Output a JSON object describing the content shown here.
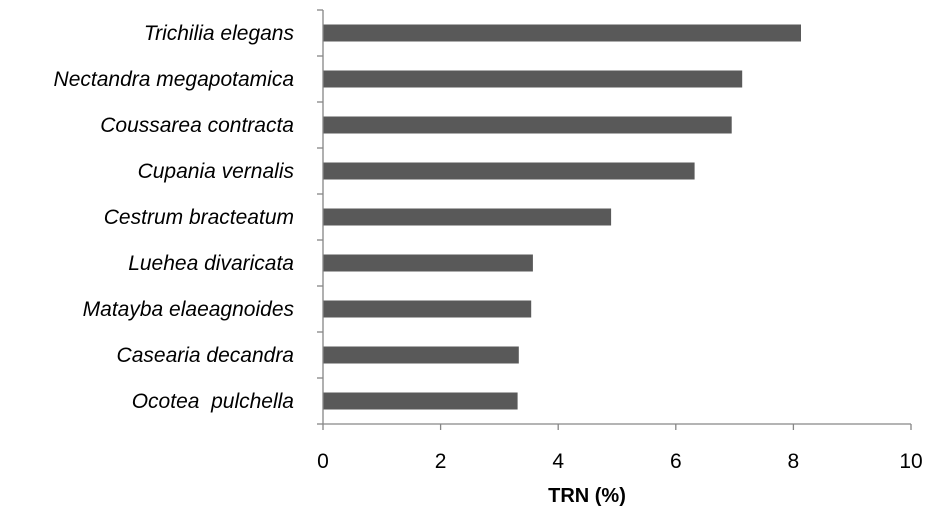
{
  "chart_data": {
    "type": "bar",
    "orientation": "horizontal",
    "categories": [
      "Trichilia elegans",
      "Nectandra megapotamica",
      "Coussarea contracta",
      "Cupania vernalis",
      "Cestrum bracteatum",
      "Luehea divaricata",
      "Matayba elaeagnoides",
      "Casearia decandra",
      "Ocotea  pulchella"
    ],
    "values": [
      8.13,
      7.13,
      6.95,
      6.32,
      4.9,
      3.57,
      3.54,
      3.33,
      3.31
    ],
    "xlabel": "TRN (%)",
    "ylabel": "",
    "xlim": [
      0,
      10
    ],
    "xticks": [
      "0",
      "2",
      "4",
      "6",
      "8",
      "10"
    ],
    "grid": false,
    "legend": "none",
    "bar_color": "#595959"
  }
}
